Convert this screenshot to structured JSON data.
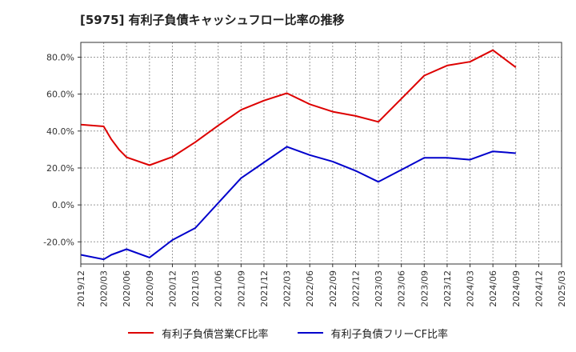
{
  "title": "[5975]  有利子負債キャッシュフロー比率の推移",
  "chart_data": {
    "type": "line",
    "title": "[5975]  有利子負債キャッシュフロー比率の推移",
    "xlabel": "",
    "ylabel": "",
    "x_ticks": [
      "2019/12",
      "2020/03",
      "2020/06",
      "2020/09",
      "2020/12",
      "2021/03",
      "2021/06",
      "2021/09",
      "2021/12",
      "2022/03",
      "2022/06",
      "2022/09",
      "2022/12",
      "2023/03",
      "2023/06",
      "2023/09",
      "2023/12",
      "2024/03",
      "2024/06",
      "2024/09",
      "2024/12",
      "2025/03"
    ],
    "y_ticks": [
      80,
      60,
      40,
      20,
      0,
      -20
    ],
    "y_tick_labels": [
      "80.0%",
      "60.0%",
      "40.0%",
      "20.0%",
      "0.0%",
      "-20.0%"
    ],
    "ylim": [
      -32,
      88
    ],
    "grid": true,
    "legend_position": "bottom",
    "series": [
      {
        "name": "有利子負債営業CF比率",
        "color": "#dd0000",
        "points": [
          [
            "2019/12",
            43.5
          ],
          [
            "2020/03",
            42.5
          ],
          [
            "2020/04",
            35.5
          ],
          [
            "2020/05",
            30
          ],
          [
            "2020/06",
            25.8
          ],
          [
            "2020/09",
            21.5
          ],
          [
            "2020/12",
            26
          ],
          [
            "2021/03",
            34
          ],
          [
            "2021/06",
            43
          ],
          [
            "2021/09",
            51.5
          ],
          [
            "2021/12",
            56.5
          ],
          [
            "2022/03",
            60.5
          ],
          [
            "2022/06",
            54.5
          ],
          [
            "2022/09",
            50.5
          ],
          [
            "2022/12",
            48.2
          ],
          [
            "2023/03",
            45
          ],
          [
            "2023/06",
            57.5
          ],
          [
            "2023/09",
            70
          ],
          [
            "2023/12",
            75.5
          ],
          [
            "2024/03",
            77.5
          ],
          [
            "2024/06",
            83.8
          ],
          [
            "2024/09",
            74.5
          ]
        ]
      },
      {
        "name": "有利子負債フリーCF比率",
        "color": "#0000cc",
        "points": [
          [
            "2019/12",
            -27
          ],
          [
            "2020/03",
            -29.5
          ],
          [
            "2020/04",
            -27
          ],
          [
            "2020/05",
            -25.5
          ],
          [
            "2020/06",
            -24
          ],
          [
            "2020/09",
            -28.5
          ],
          [
            "2020/12",
            -19
          ],
          [
            "2021/03",
            -12.5
          ],
          [
            "2021/06",
            1
          ],
          [
            "2021/09",
            14.5
          ],
          [
            "2021/12",
            23
          ],
          [
            "2022/03",
            31.5
          ],
          [
            "2022/06",
            27
          ],
          [
            "2022/09",
            23.5
          ],
          [
            "2022/12",
            18.5
          ],
          [
            "2023/03",
            12.5
          ],
          [
            "2023/06",
            19
          ],
          [
            "2023/09",
            25.5
          ],
          [
            "2023/12",
            25.5
          ],
          [
            "2024/03",
            24.5
          ],
          [
            "2024/06",
            29
          ],
          [
            "2024/09",
            28
          ]
        ]
      }
    ]
  },
  "colors": {
    "grid": "#999999",
    "axis": "#333333"
  }
}
